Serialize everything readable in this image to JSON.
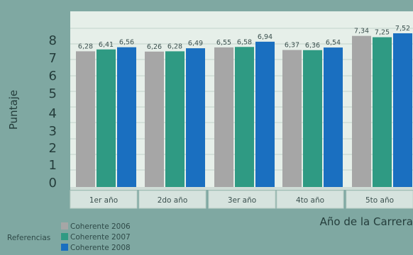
{
  "chart_data": {
    "type": "bar",
    "ylabel": "Puntaje",
    "xlabel": "Año de la Carrera",
    "ylim": [
      0,
      8
    ],
    "y_ticks": [
      0,
      1,
      2,
      3,
      4,
      5,
      6,
      7,
      8
    ],
    "categories": [
      "1er año",
      "2do año",
      "3er año",
      "4to año",
      "5to año"
    ],
    "series": [
      {
        "name": "Coherente 2006",
        "color": "#a6a6a6",
        "values": [
          6.28,
          6.26,
          6.55,
          6.37,
          7.34
        ],
        "value_labels": [
          "6,28",
          "6,26",
          "6,55",
          "6,37",
          "7,34"
        ]
      },
      {
        "name": "Coherente 2007",
        "color": "#2f9a83",
        "values": [
          6.41,
          6.28,
          6.58,
          6.36,
          7.25
        ],
        "value_labels": [
          "6,41",
          "6,28",
          "6,58",
          "6,36",
          "7,25"
        ]
      },
      {
        "name": "Coherente 2008",
        "color": "#1a6fc0",
        "values": [
          6.56,
          6.49,
          6.94,
          6.54,
          7.52
        ],
        "value_labels": [
          "6,56",
          "6,49",
          "6,94",
          "6,54",
          "7,52"
        ]
      }
    ],
    "legend_title": "Referencias",
    "legend_position": "bottom-left",
    "grid": true
  }
}
